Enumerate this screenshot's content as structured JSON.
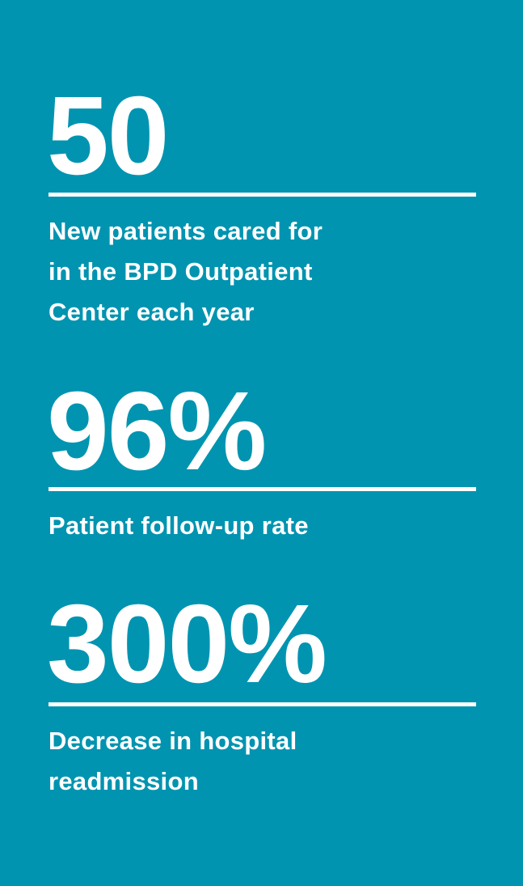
{
  "stats": [
    {
      "value": "50",
      "description": [
        "New patients cared for",
        "in the BPD Outpatient",
        "Center each year"
      ]
    },
    {
      "value": "96%",
      "description": [
        "Patient follow-up rate"
      ]
    },
    {
      "value": "300%",
      "description": [
        "Decrease in hospital",
        "readmission"
      ]
    }
  ]
}
